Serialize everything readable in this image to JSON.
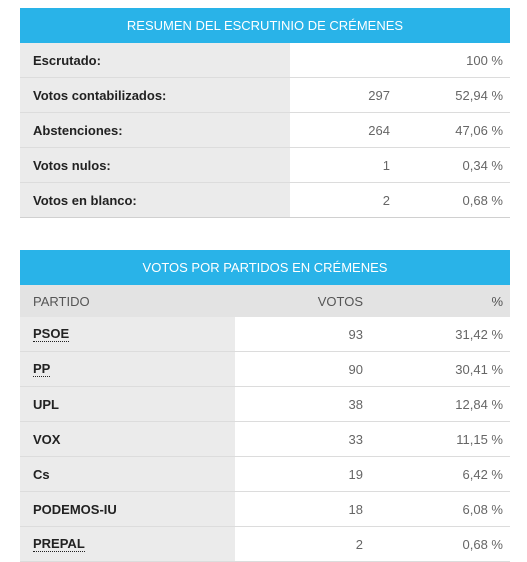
{
  "summary": {
    "title": "RESUMEN DEL ESCRUTINIO DE CRÉMENES",
    "rows": [
      {
        "label": "Escrutado:",
        "votes": "",
        "pct": "100 %"
      },
      {
        "label": "Votos contabilizados:",
        "votes": "297",
        "pct": "52,94 %"
      },
      {
        "label": "Abstenciones:",
        "votes": "264",
        "pct": "47,06 %"
      },
      {
        "label": "Votos nulos:",
        "votes": "1",
        "pct": "0,34 %"
      },
      {
        "label": "Votos en blanco:",
        "votes": "2",
        "pct": "0,68 %"
      }
    ]
  },
  "parties": {
    "title": "VOTOS POR PARTIDOS EN CRÉMENES",
    "headers": {
      "party": "PARTIDO",
      "votes": "VOTOS",
      "pct": "%"
    },
    "rows": [
      {
        "party": "PSOE",
        "votes": "93",
        "pct": "31,42 %",
        "dotted": true
      },
      {
        "party": "PP",
        "votes": "90",
        "pct": "30,41 %",
        "dotted": true
      },
      {
        "party": "UPL",
        "votes": "38",
        "pct": "12,84 %",
        "dotted": false
      },
      {
        "party": "VOX",
        "votes": "33",
        "pct": "11,15 %",
        "dotted": false
      },
      {
        "party": "Cs",
        "votes": "19",
        "pct": "6,42 %",
        "dotted": false
      },
      {
        "party": "PODEMOS-IU",
        "votes": "18",
        "pct": "6,08 %",
        "dotted": false
      },
      {
        "party": "PREPAL",
        "votes": "2",
        "pct": "0,68 %",
        "dotted": true
      }
    ]
  },
  "colors": {
    "header_bg": "#29b3e8",
    "label_bg": "#ebebeb",
    "col_header_bg": "#e3e3e3"
  }
}
